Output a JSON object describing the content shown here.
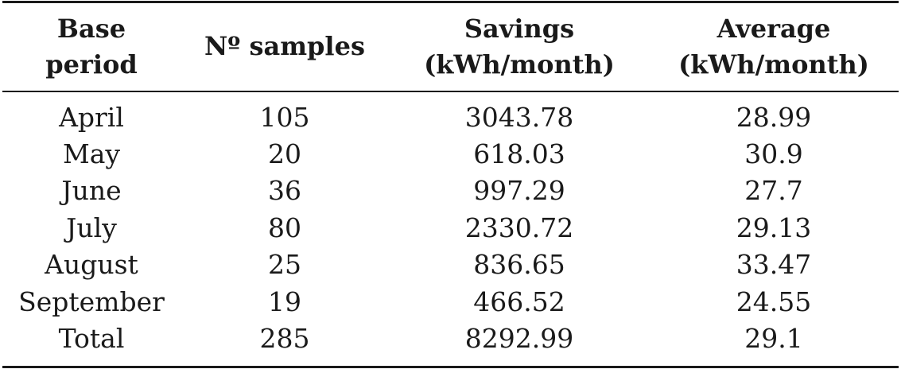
{
  "table": {
    "headers": [
      {
        "line1": "Base",
        "line2": "period"
      },
      {
        "line1": "Nº samples",
        "line2": ""
      },
      {
        "line1": "Savings",
        "line2": "(kWh/month)"
      },
      {
        "line1": "Average",
        "line2": "(kWh/month)"
      }
    ],
    "rows": [
      [
        "April",
        "105",
        "3043.78",
        "28.99"
      ],
      [
        "May",
        "20",
        "618.03",
        "30.9"
      ],
      [
        "June",
        "36",
        "997.29",
        "27.7"
      ],
      [
        "July",
        "80",
        "2330.72",
        "29.13"
      ],
      [
        "August",
        "25",
        "836.65",
        "33.47"
      ],
      [
        "September",
        "19",
        "466.52",
        "24.55"
      ],
      [
        "Total",
        "285",
        "8292.99",
        "29.1"
      ]
    ]
  }
}
